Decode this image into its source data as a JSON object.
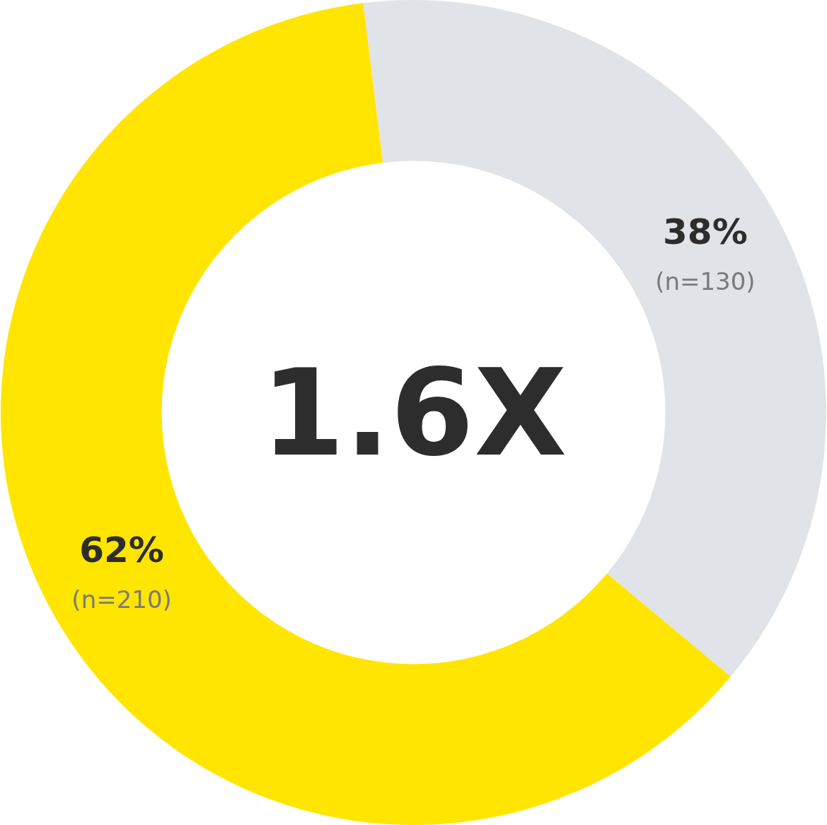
{
  "chart_data": {
    "type": "donut",
    "categories": [
      null,
      null
    ],
    "values": [
      38,
      62
    ],
    "colors": [
      "#e0e3e8",
      "#ffe500"
    ],
    "value_labels": [
      "38%\n(n=130)",
      "62%\n(n=210)"
    ],
    "annotations": [
      "1.6X"
    ],
    "legend": false
  }
}
